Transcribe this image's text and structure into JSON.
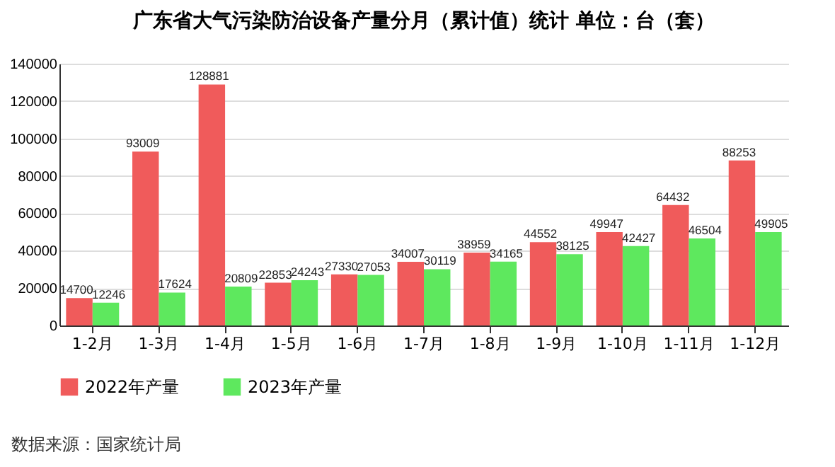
{
  "chart_data": {
    "type": "bar",
    "title": "广东省大气污染防治设备产量分月（累计值）统计  单位：台（套）",
    "categories": [
      "1-2月",
      "1-3月",
      "1-4月",
      "1-5月",
      "1-6月",
      "1-7月",
      "1-8月",
      "1-9月",
      "1-10月",
      "1-11月",
      "1-12月"
    ],
    "series": [
      {
        "name": "2022年产量",
        "color": "#f05b5b",
        "values": [
          14700,
          93009,
          128881,
          22853,
          27330,
          34007,
          38959,
          44552,
          49947,
          64432,
          88253
        ]
      },
      {
        "name": "2023年产量",
        "color": "#5ee85e",
        "values": [
          12246,
          17624,
          20809,
          24243,
          27053,
          30119,
          34165,
          38125,
          42427,
          46504,
          49905
        ]
      }
    ],
    "ylim": [
      0,
      140000
    ],
    "yticks": [
      0,
      20000,
      40000,
      60000,
      80000,
      100000,
      120000,
      140000
    ],
    "grid": "y",
    "legend": "bottom",
    "data_labels": true,
    "annotations": [
      "数据来源：国家统计局"
    ]
  }
}
